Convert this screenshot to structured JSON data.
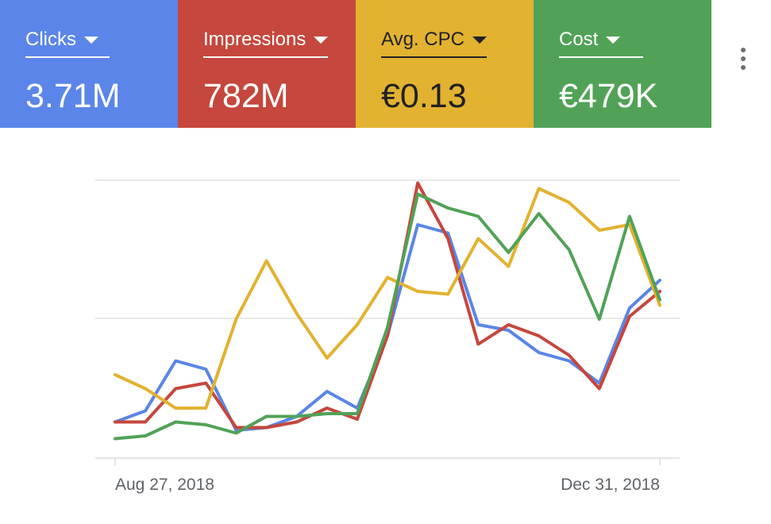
{
  "metrics": [
    {
      "label": "Clicks",
      "value": "3.71M",
      "color": "#5b85e8",
      "text_color": "#ffffff"
    },
    {
      "label": "Impressions",
      "value": "782M",
      "color": "#c5473d",
      "text_color": "#ffffff"
    },
    {
      "label": "Avg. CPC",
      "value": "€0.13",
      "color": "#e2b230",
      "text_color": "#202124"
    },
    {
      "label": "Cost",
      "value": "€479K",
      "color": "#51a257",
      "text_color": "#ffffff"
    }
  ],
  "more_menu_icon": "more-vert-icon",
  "chart_data": {
    "type": "line",
    "x_labels": [
      "Aug 27, 2018",
      "Dec 31, 2018"
    ],
    "points": 19,
    "ylim": [
      0,
      100
    ],
    "grid": true,
    "series": [
      {
        "metric": "Clicks",
        "color": "#5b85e8",
        "values": [
          13,
          17,
          35,
          32,
          10,
          11,
          15,
          24,
          18,
          44,
          84,
          81,
          48,
          46,
          38,
          35,
          27,
          54,
          64
        ]
      },
      {
        "metric": "Impressions",
        "color": "#c5473d",
        "values": [
          13,
          13,
          25,
          27,
          11,
          11,
          13,
          18,
          14,
          44,
          99,
          79,
          41,
          48,
          44,
          37,
          25,
          51,
          60
        ]
      },
      {
        "metric": "Avg. CPC",
        "color": "#e2b230",
        "values": [
          30,
          25,
          18,
          18,
          50,
          71,
          52,
          36,
          48,
          65,
          60,
          59,
          79,
          69,
          97,
          92,
          82,
          84,
          55
        ]
      },
      {
        "metric": "Cost",
        "color": "#51a257",
        "values": [
          7,
          8,
          13,
          12,
          9,
          15,
          15,
          16,
          16,
          47,
          95,
          90,
          87,
          74,
          88,
          75,
          50,
          87,
          57
        ]
      }
    ]
  }
}
